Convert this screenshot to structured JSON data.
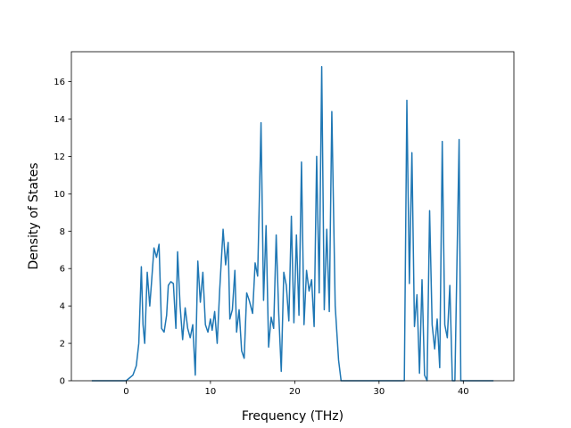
{
  "chart_data": {
    "type": "line",
    "title": "",
    "xlabel": "Frequency (THz)",
    "ylabel": "Density of States",
    "xlim": [
      -6.5,
      46
    ],
    "ylim": [
      0,
      17.6
    ],
    "xticks": [
      0,
      10,
      20,
      30,
      40
    ],
    "yticks": [
      0,
      2,
      4,
      6,
      8,
      10,
      12,
      14,
      16
    ],
    "grid": false,
    "legend": "none",
    "line_color": "#1f77b4",
    "series": [
      {
        "x": [
          -4.0,
          0.0,
          0.8,
          1.2,
          1.5,
          1.8,
          2.0,
          2.2,
          2.5,
          2.8,
          3.0,
          3.3,
          3.6,
          3.9,
          4.2,
          4.5,
          4.8,
          5.0,
          5.3,
          5.6,
          5.9,
          6.1,
          6.4,
          6.7,
          7.0,
          7.3,
          7.6,
          7.9,
          8.2,
          8.5,
          8.8,
          9.1,
          9.4,
          9.7,
          10.0,
          10.2,
          10.5,
          10.8,
          11.1,
          11.5,
          11.8,
          12.1,
          12.3,
          12.6,
          12.9,
          13.1,
          13.4,
          13.7,
          14.0,
          14.3,
          14.6,
          15.0,
          15.3,
          15.6,
          16.0,
          16.3,
          16.6,
          16.9,
          17.2,
          17.5,
          17.8,
          18.1,
          18.4,
          18.7,
          19.0,
          19.3,
          19.6,
          19.9,
          20.2,
          20.5,
          20.8,
          21.1,
          21.4,
          21.7,
          22.0,
          22.3,
          22.6,
          22.9,
          23.2,
          23.5,
          23.8,
          24.1,
          24.4,
          24.8,
          25.2,
          25.5,
          30.0,
          33.0,
          33.3,
          33.6,
          33.9,
          34.2,
          34.5,
          34.8,
          35.1,
          35.4,
          35.7,
          36.0,
          36.3,
          36.6,
          36.9,
          37.2,
          37.5,
          37.8,
          38.1,
          38.4,
          38.7,
          39.0,
          39.5,
          39.7,
          40.0,
          43.5
        ],
        "y": [
          0.0,
          0.0,
          0.3,
          0.8,
          2.0,
          6.1,
          3.0,
          2.0,
          5.8,
          4.0,
          5.2,
          7.1,
          6.6,
          7.3,
          2.8,
          2.6,
          3.5,
          5.1,
          5.3,
          5.2,
          2.8,
          6.9,
          4.0,
          2.2,
          3.9,
          2.8,
          2.3,
          3.0,
          0.3,
          6.4,
          4.2,
          5.8,
          3.0,
          2.6,
          3.3,
          2.7,
          3.7,
          2.0,
          4.9,
          8.1,
          6.2,
          7.4,
          3.3,
          3.8,
          5.9,
          2.6,
          3.8,
          1.6,
          1.2,
          4.7,
          4.3,
          3.6,
          6.3,
          5.6,
          13.8,
          4.3,
          8.3,
          1.8,
          3.4,
          2.8,
          7.8,
          3.6,
          0.5,
          5.8,
          5.1,
          3.2,
          8.8,
          3.1,
          7.8,
          3.5,
          11.7,
          3.0,
          5.9,
          4.8,
          5.4,
          2.9,
          12.0,
          4.7,
          16.8,
          3.8,
          8.1,
          3.7,
          14.4,
          4.0,
          1.1,
          0.0,
          0.0,
          0.0,
          15.0,
          5.2,
          12.2,
          2.9,
          4.6,
          0.4,
          5.4,
          0.3,
          0.0,
          9.1,
          3.0,
          1.7,
          3.3,
          0.7,
          12.8,
          3.0,
          2.3,
          5.1,
          0.0,
          0.0,
          12.9,
          0.0,
          0.0,
          0.0
        ]
      }
    ]
  }
}
